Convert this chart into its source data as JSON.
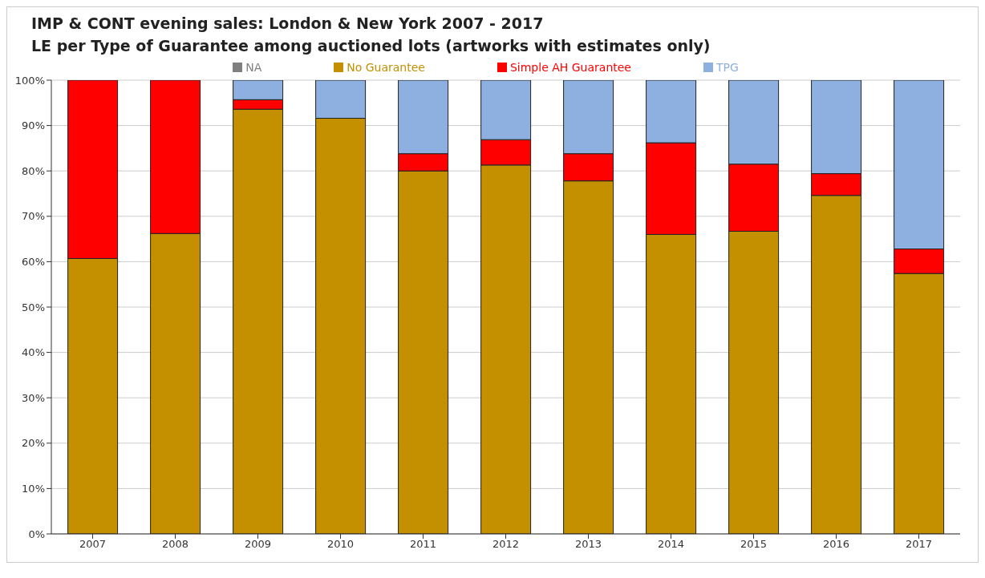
{
  "chart_data": {
    "type": "bar",
    "title": "IMP & CONT evening sales: London & New York 2007 - 2017",
    "subtitle": "LE per Type of Guarantee among auctioned lots (artworks with estimates only)",
    "categories": [
      "2007",
      "2008",
      "2009",
      "2010",
      "2011",
      "2012",
      "2013",
      "2014",
      "2015",
      "2016",
      "2017"
    ],
    "stacked": true,
    "series": [
      {
        "name": "NA",
        "color": "#808080",
        "values": [
          0,
          0,
          0,
          0,
          0,
          0,
          0,
          0,
          0,
          0,
          0
        ]
      },
      {
        "name": "No Guarantee",
        "color": "#c49000",
        "values": [
          60.7,
          66.2,
          93.6,
          91.6,
          80.0,
          81.3,
          77.8,
          66.0,
          66.7,
          74.6,
          57.4
        ]
      },
      {
        "name": "Simple AH Guarantee",
        "color": "#ff0000",
        "values": [
          39.3,
          33.8,
          2.1,
          0,
          3.8,
          5.6,
          6.0,
          20.2,
          14.8,
          4.8,
          5.4
        ]
      },
      {
        "name": "TPG",
        "color": "#8db0e0",
        "values": [
          0,
          0,
          4.3,
          8.4,
          16.2,
          13.1,
          16.2,
          13.8,
          18.5,
          20.6,
          37.2
        ]
      }
    ],
    "ylim": [
      0,
      100
    ],
    "yticks": [
      {
        "value": 0,
        "label": "0%"
      },
      {
        "value": 10,
        "label": "10%"
      },
      {
        "value": 20,
        "label": "20%"
      },
      {
        "value": 30,
        "label": "30%"
      },
      {
        "value": 40,
        "label": "40%"
      },
      {
        "value": 50,
        "label": "50%"
      },
      {
        "value": 60,
        "label": "60%"
      },
      {
        "value": 70,
        "label": "70%"
      },
      {
        "value": 80,
        "label": "80%"
      },
      {
        "value": 90,
        "label": "90%"
      },
      {
        "value": 100,
        "label": "100%"
      }
    ],
    "grid": "y",
    "legend": "top"
  }
}
